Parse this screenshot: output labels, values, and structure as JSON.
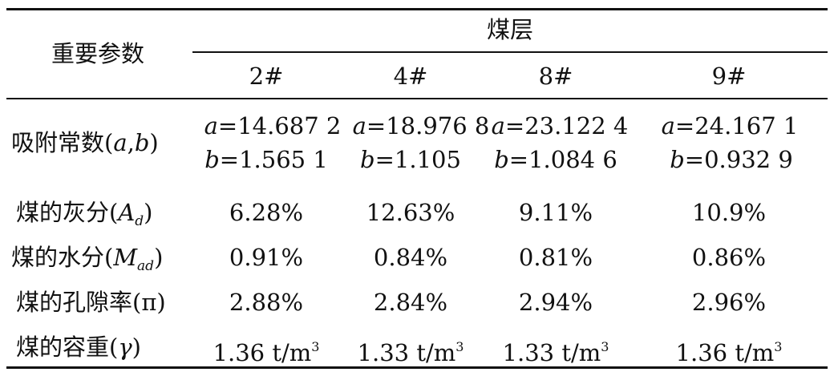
{
  "table": {
    "header": {
      "param_label": "重要参数",
      "group_label": "煤层",
      "seams": [
        "2#",
        "4#",
        "8#",
        "9#"
      ]
    },
    "rows": [
      {
        "label_prefix": "吸附常数(",
        "label_var_a": "a",
        "label_comma": ",",
        "label_var_b": "b",
        "label_suffix": ")",
        "cells": [
          {
            "a_var": "a",
            "a_val": "=14.687 2",
            "b_var": "b",
            "b_val": "=1.565 1"
          },
          {
            "a_var": "a",
            "a_val": "=18.976 8",
            "b_var": "b",
            "b_val": "=1.105"
          },
          {
            "a_var": "a",
            "a_val": "=23.122 4",
            "b_var": "b",
            "b_val": "=1.084 6"
          },
          {
            "a_var": "a",
            "a_val": "=24.167 1",
            "b_var": "b",
            "b_val": "=0.932 9"
          }
        ]
      },
      {
        "label_prefix": "煤的灰分(",
        "label_var": "A",
        "label_sub": "d",
        "label_suffix": ")",
        "values": [
          "6.28%",
          "12.63%",
          "9.11%",
          "10.9%"
        ]
      },
      {
        "label_prefix": "煤的水分(",
        "label_var": "M",
        "label_sub": "ad",
        "label_suffix": ")",
        "values": [
          "0.91%",
          "0.84%",
          "0.81%",
          "0.86%"
        ]
      },
      {
        "label": "煤的孔隙率(π)",
        "values": [
          "2.88%",
          "2.84%",
          "2.94%",
          "2.96%"
        ]
      },
      {
        "label_prefix": "煤的容重(",
        "label_var": "γ",
        "label_suffix": ")",
        "values": [
          "1.36",
          "1.33",
          "1.33",
          "1.36"
        ],
        "unit": "t/m",
        "unit_sup": "3"
      }
    ]
  }
}
